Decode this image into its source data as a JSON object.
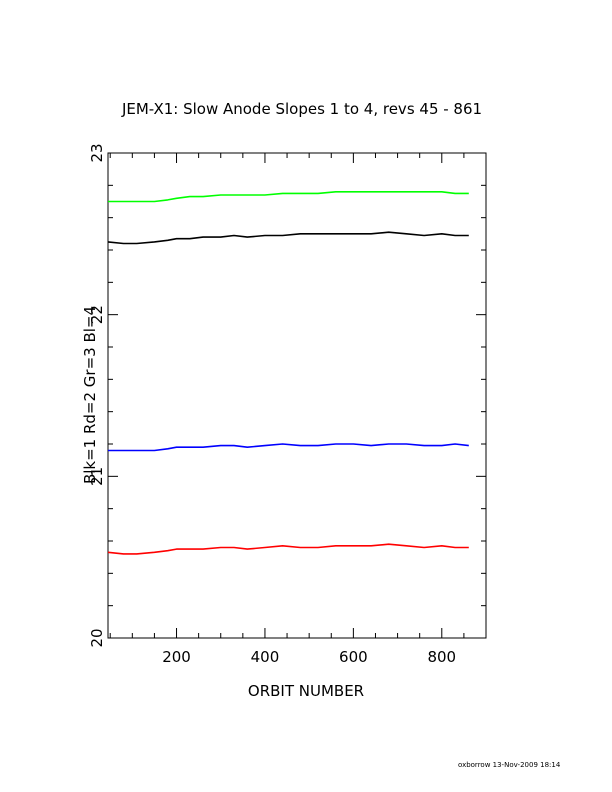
{
  "footer": "oxborrow 13-Nov-2009 18:14",
  "chart_data": {
    "type": "line",
    "title": "JEM-X1: Slow Anode Slopes 1 to 4, revs 45 - 861",
    "xlabel": "ORBIT NUMBER",
    "ylabel": "Blk=1 Rd=2 Gr=3 Bl=4",
    "xlim": [
      45,
      900
    ],
    "ylim": [
      20,
      23
    ],
    "xticks": [
      200,
      400,
      600,
      800
    ],
    "yticks": [
      20,
      21,
      22,
      23
    ],
    "grid": false,
    "series": [
      {
        "color": "#000000",
        "x": [
          45,
          80,
          110,
          150,
          180,
          200,
          230,
          260,
          300,
          330,
          360,
          400,
          440,
          480,
          520,
          560,
          600,
          640,
          680,
          720,
          760,
          800,
          830,
          861
        ],
        "y": [
          22.45,
          22.44,
          22.44,
          22.45,
          22.46,
          22.47,
          22.47,
          22.48,
          22.48,
          22.49,
          22.48,
          22.49,
          22.49,
          22.5,
          22.5,
          22.5,
          22.5,
          22.5,
          22.51,
          22.5,
          22.49,
          22.5,
          22.49,
          22.49
        ]
      },
      {
        "color": "#ff0000",
        "x": [
          45,
          80,
          110,
          150,
          180,
          200,
          230,
          260,
          300,
          330,
          360,
          400,
          440,
          480,
          520,
          560,
          600,
          640,
          680,
          720,
          760,
          800,
          830,
          861
        ],
        "y": [
          20.53,
          20.52,
          20.52,
          20.53,
          20.54,
          20.55,
          20.55,
          20.55,
          20.56,
          20.56,
          20.55,
          20.56,
          20.57,
          20.56,
          20.56,
          20.57,
          20.57,
          20.57,
          20.58,
          20.57,
          20.56,
          20.57,
          20.56,
          20.56
        ]
      },
      {
        "color": "#00ff00",
        "x": [
          45,
          80,
          110,
          150,
          180,
          200,
          230,
          260,
          300,
          330,
          360,
          400,
          440,
          480,
          520,
          560,
          600,
          640,
          680,
          720,
          760,
          800,
          830,
          861
        ],
        "y": [
          22.7,
          22.7,
          22.7,
          22.7,
          22.71,
          22.72,
          22.73,
          22.73,
          22.74,
          22.74,
          22.74,
          22.74,
          22.75,
          22.75,
          22.75,
          22.76,
          22.76,
          22.76,
          22.76,
          22.76,
          22.76,
          22.76,
          22.75,
          22.75
        ]
      },
      {
        "color": "#0000ff",
        "x": [
          45,
          80,
          110,
          150,
          180,
          200,
          230,
          260,
          300,
          330,
          360,
          400,
          440,
          480,
          520,
          560,
          600,
          640,
          680,
          720,
          760,
          800,
          830,
          861
        ],
        "y": [
          21.16,
          21.16,
          21.16,
          21.16,
          21.17,
          21.18,
          21.18,
          21.18,
          21.19,
          21.19,
          21.18,
          21.19,
          21.2,
          21.19,
          21.19,
          21.2,
          21.2,
          21.19,
          21.2,
          21.2,
          21.19,
          21.19,
          21.2,
          21.19
        ]
      }
    ]
  }
}
